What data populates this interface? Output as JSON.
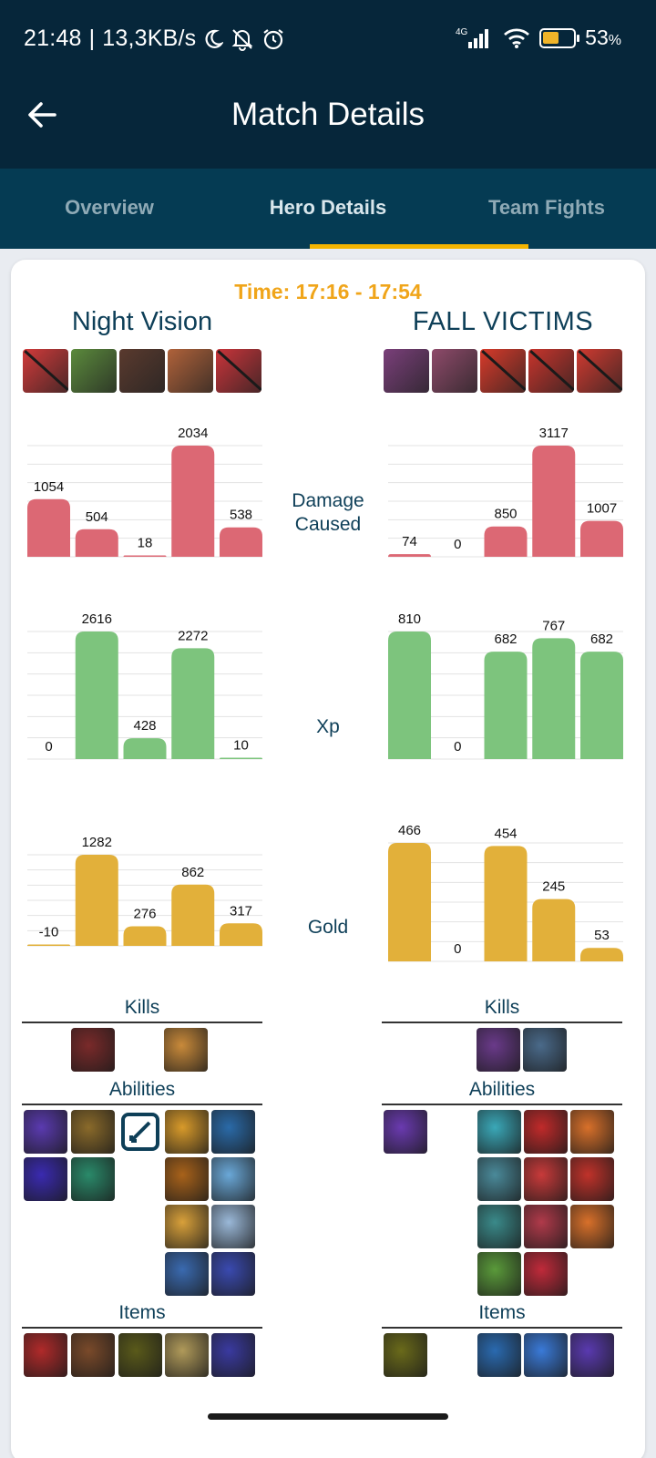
{
  "status_bar": {
    "time": "21:48",
    "speed": "13,3KB/s",
    "network": "4G",
    "battery": "53",
    "battery_unit": "%",
    "battery_level": 0.53
  },
  "app_bar": {
    "title": "Match Details",
    "back_icon": "arrow-left-icon"
  },
  "tabs": [
    {
      "label": "Overview",
      "active": false
    },
    {
      "label": "Hero Details",
      "active": true
    },
    {
      "label": "Team Fights",
      "active": false
    }
  ],
  "fight": {
    "time_label": "Time: 17:16 - 17:54",
    "left_team": "Night Vision",
    "right_team": "FALL VICTIMS",
    "left_heroes": [
      {
        "color": "#d23a3a",
        "dead": true
      },
      {
        "color": "#5b8a3c",
        "dead": false
      },
      {
        "color": "#5a3a2e",
        "dead": false
      },
      {
        "color": "#b0623a",
        "dead": false
      },
      {
        "color": "#c9343a",
        "dead": true
      }
    ],
    "right_heroes": [
      {
        "color": "#7a3f7a",
        "dead": false
      },
      {
        "color": "#8e4a6a",
        "dead": false
      },
      {
        "color": "#d83a2a",
        "dead": true
      },
      {
        "color": "#c8342c",
        "dead": true
      },
      {
        "color": "#d03a30",
        "dead": true
      }
    ]
  },
  "metrics": {
    "damage_label": "Damage Caused",
    "xp_label": "Xp",
    "gold_label": "Gold"
  },
  "chart_data": [
    {
      "type": "bar",
      "title": "Damage Caused",
      "team": "Night Vision",
      "color": "#dc6874",
      "values": [
        1054,
        504,
        18,
        2034,
        538
      ]
    },
    {
      "type": "bar",
      "title": "Damage Caused",
      "team": "FALL VICTIMS",
      "color": "#dc6874",
      "values": [
        74,
        0,
        850,
        3117,
        1007
      ]
    },
    {
      "type": "bar",
      "title": "Xp",
      "team": "Night Vision",
      "color": "#7dc47d",
      "values": [
        0,
        2616,
        428,
        2272,
        10
      ]
    },
    {
      "type": "bar",
      "title": "Xp",
      "team": "FALL VICTIMS",
      "color": "#7dc47d",
      "values": [
        810,
        0,
        682,
        767,
        682
      ]
    },
    {
      "type": "bar",
      "title": "Gold",
      "team": "Night Vision",
      "color": "#e2b03a",
      "values": [
        -10,
        1282,
        276,
        862,
        317
      ]
    },
    {
      "type": "bar",
      "title": "Gold",
      "team": "FALL VICTIMS",
      "color": "#e2b03a",
      "values": [
        466,
        0,
        454,
        245,
        53
      ]
    }
  ],
  "sections": {
    "kills": "Kills",
    "abilities": "Abilities",
    "items": "Items"
  },
  "kills": {
    "left": [
      "#7a2a2a",
      "#c98a3a"
    ],
    "right": [
      "#6a3a8a",
      "#4a6a8a"
    ]
  },
  "abilities": {
    "left": [
      [
        "#5a3ab0",
        "#8a6a2a",
        "edit-icon",
        "#d89a2a",
        "#2a6aa8"
      ],
      [
        "#3a2ab0",
        "#2a8a6a",
        null,
        "#a8621a",
        "#6aa8d8"
      ],
      [
        null,
        null,
        null,
        "#d8a03a",
        "#9ab8d8"
      ],
      [
        null,
        null,
        null,
        "#3a6ab0",
        "#3a4ab0"
      ]
    ],
    "right": [
      [
        "#6a3ab0",
        null,
        "#3aa8b8",
        "#c02a2a",
        "#d8702a"
      ],
      [
        null,
        null,
        "#4a8a9a",
        "#c83a3a",
        "#c0322a"
      ],
      [
        null,
        null,
        "#3a8a8a",
        "#b03a4a",
        "#d8702a"
      ],
      [
        null,
        null,
        "#5a9a3a",
        "#c02a3a",
        null
      ]
    ]
  },
  "items": {
    "left": [
      "#b02a2a",
      "#7a4a2a",
      "#5a5a1a",
      "#b09a5a",
      "#3a3aa0"
    ],
    "right": [
      "#6a6a1a",
      null,
      "#2a6ab0",
      "#3a7ad8",
      "#5a3ab0"
    ]
  }
}
